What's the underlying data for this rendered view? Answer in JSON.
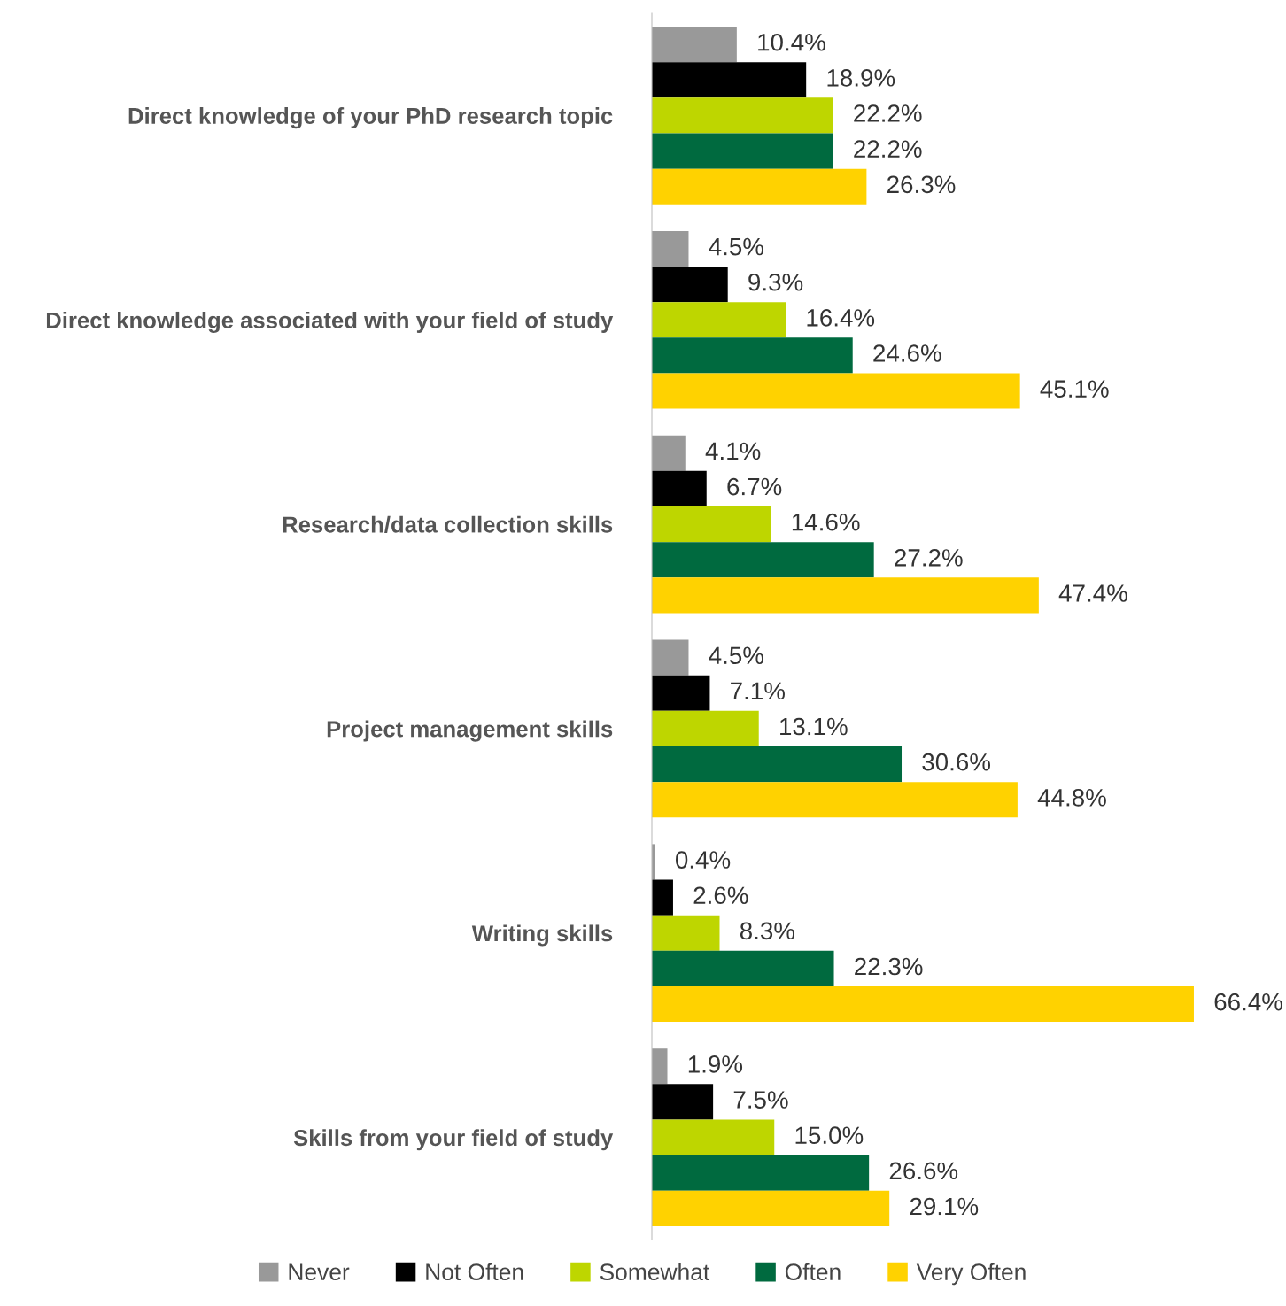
{
  "chart_data": {
    "type": "bar",
    "orientation": "horizontal",
    "categories": [
      "Direct knowledge of your PhD research topic",
      "Direct knowledge associated with your field of study",
      "Research/data collection skills",
      "Project management skills",
      "Writing skills",
      "Skills from your field of study"
    ],
    "tick_labels": "y",
    "grid": false,
    "legend": "bottom",
    "series": [
      {
        "name": "Never",
        "color": "#999999",
        "values": [
          10.4,
          4.5,
          4.1,
          4.5,
          0.4,
          1.9
        ],
        "value_labels": [
          "10.4%",
          "4.5%",
          "4.1%",
          "4.5%",
          "0.4%",
          "1.9%"
        ]
      },
      {
        "name": "Not Often",
        "color": "#000000",
        "values": [
          18.9,
          9.3,
          6.7,
          7.1,
          2.6,
          7.5
        ],
        "value_labels": [
          "18.9%",
          "9.3%",
          "6.7%",
          "7.1%",
          "2.6%",
          "7.5%"
        ]
      },
      {
        "name": "Somewhat",
        "color": "#bed600",
        "values": [
          22.2,
          16.4,
          14.6,
          13.1,
          8.3,
          15.0
        ],
        "value_labels": [
          "22.2%",
          "16.4%",
          "14.6%",
          "13.1%",
          "8.3%",
          "15.0%"
        ]
      },
      {
        "name": "Often",
        "color": "#006a3f",
        "values": [
          22.2,
          24.6,
          27.2,
          30.6,
          22.3,
          26.6
        ],
        "value_labels": [
          "22.2%",
          "24.6%",
          "27.2%",
          "30.6%",
          "22.3%",
          "26.6%"
        ]
      },
      {
        "name": "Very Often",
        "color": "#ffd200",
        "values": [
          26.3,
          45.1,
          47.4,
          44.8,
          66.4,
          29.1
        ],
        "value_labels": [
          "26.3%",
          "45.1%",
          "47.4%",
          "44.8%",
          "66.4%",
          "29.1%"
        ]
      }
    ]
  }
}
